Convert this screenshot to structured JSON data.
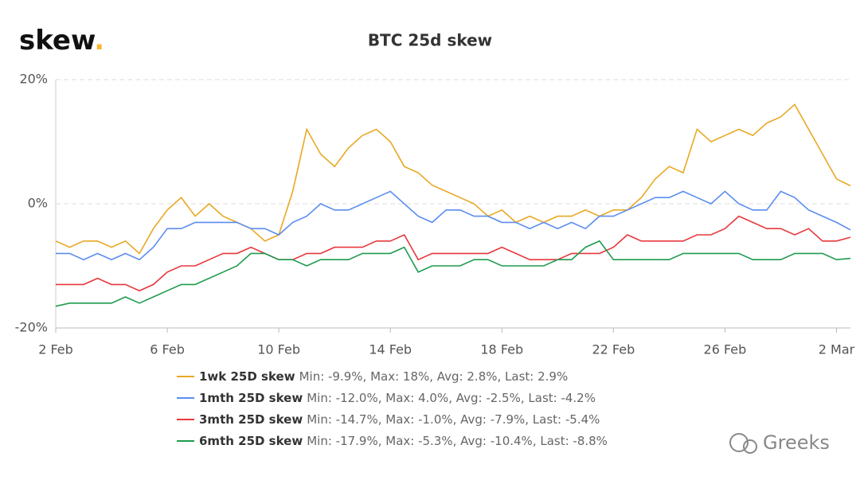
{
  "chart_data": {
    "type": "line",
    "title": "BTC 25d skew",
    "logo": "skew",
    "logo_dot": ".",
    "watermark": "Greeks",
    "xlim": [
      0,
      28.5
    ],
    "xticks": [
      {
        "value": 0,
        "label": "2 Feb"
      },
      {
        "value": 4,
        "label": "6 Feb"
      },
      {
        "value": 8,
        "label": "10 Feb"
      },
      {
        "value": 12,
        "label": "14 Feb"
      },
      {
        "value": 16,
        "label": "18 Feb"
      },
      {
        "value": 20,
        "label": "22 Feb"
      },
      {
        "value": 24,
        "label": "26 Feb"
      },
      {
        "value": 28,
        "label": "2 Mar"
      }
    ],
    "ylim": [
      -20,
      20
    ],
    "yticks": [
      {
        "value": -20,
        "label": "-20%"
      },
      {
        "value": 0,
        "label": "0%"
      },
      {
        "value": 20,
        "label": "20%"
      }
    ],
    "grid": true,
    "x": [
      0,
      0.5,
      1,
      1.5,
      2,
      2.5,
      3,
      3.5,
      4,
      4.5,
      5,
      5.5,
      6,
      6.5,
      7,
      7.5,
      8,
      8.5,
      9,
      9.5,
      10,
      10.5,
      11,
      11.5,
      12,
      12.5,
      13,
      13.5,
      14,
      14.5,
      15,
      15.5,
      16,
      16.5,
      17,
      17.5,
      18,
      18.5,
      19,
      19.5,
      20,
      20.5,
      21,
      21.5,
      22,
      22.5,
      23,
      23.5,
      24,
      24.5,
      25,
      25.5,
      26,
      26.5,
      27,
      27.5,
      28,
      28.5
    ],
    "series": [
      {
        "name": "1wk 25D skew",
        "stats": "Min: -9.9%, Max: 18%, Avg: 2.8%, Last: 2.9%",
        "color": "#e8a823",
        "values": [
          -6,
          -7,
          -6,
          -6,
          -7,
          -6,
          -8,
          -4,
          -1,
          1,
          -2,
          0,
          -2,
          -3,
          -4,
          -6,
          -5,
          2,
          12,
          8,
          6,
          9,
          11,
          12,
          10,
          6,
          5,
          3,
          2,
          1,
          0,
          -2,
          -1,
          -3,
          -2,
          -3,
          -2,
          -2,
          -1,
          -2,
          -1,
          -1,
          1,
          4,
          6,
          5,
          12,
          10,
          11,
          12,
          11,
          13,
          14,
          16,
          12,
          8,
          4,
          2.9
        ]
      },
      {
        "name": "1mth 25D skew",
        "stats": "Min: -12.0%, Max: 4.0%, Avg: -2.5%, Last: -4.2%",
        "color": "#5b8def",
        "values": [
          -8,
          -8,
          -9,
          -8,
          -9,
          -8,
          -9,
          -7,
          -4,
          -4,
          -3,
          -3,
          -3,
          -3,
          -4,
          -4,
          -5,
          -3,
          -2,
          0,
          -1,
          -1,
          0,
          1,
          2,
          0,
          -2,
          -3,
          -1,
          -1,
          -2,
          -2,
          -3,
          -3,
          -4,
          -3,
          -4,
          -3,
          -4,
          -2,
          -2,
          -1,
          0,
          1,
          1,
          2,
          1,
          0,
          2,
          0,
          -1,
          -1,
          2,
          1,
          -1,
          -2,
          -3,
          -4.2
        ]
      },
      {
        "name": "3mth 25D skew",
        "stats": "Min: -14.7%, Max: -1.0%, Avg: -7.9%, Last: -5.4%",
        "color": "#e8383d",
        "values": [
          -13,
          -13,
          -13,
          -12,
          -13,
          -13,
          -14,
          -13,
          -11,
          -10,
          -10,
          -9,
          -8,
          -8,
          -7,
          -8,
          -9,
          -9,
          -8,
          -8,
          -7,
          -7,
          -7,
          -6,
          -6,
          -5,
          -9,
          -8,
          -8,
          -8,
          -8,
          -8,
          -7,
          -8,
          -9,
          -9,
          -9,
          -8,
          -8,
          -8,
          -7,
          -5,
          -6,
          -6,
          -6,
          -6,
          -5,
          -5,
          -4,
          -2,
          -3,
          -4,
          -4,
          -5,
          -4,
          -6,
          -6,
          -5.4
        ]
      },
      {
        "name": "6mth 25D skew",
        "stats": "Min: -17.9%, Max: -5.3%, Avg: -10.4%, Last: -8.8%",
        "color": "#1e9b4e",
        "values": [
          -16.5,
          -16,
          -16,
          -16,
          -16,
          -15,
          -16,
          -15,
          -14,
          -13,
          -13,
          -12,
          -11,
          -10,
          -8,
          -8,
          -9,
          -9,
          -10,
          -9,
          -9,
          -9,
          -8,
          -8,
          -8,
          -7,
          -11,
          -10,
          -10,
          -10,
          -9,
          -9,
          -10,
          -10,
          -10,
          -10,
          -9,
          -9,
          -7,
          -6,
          -9,
          -9,
          -9,
          -9,
          -9,
          -8,
          -8,
          -8,
          -8,
          -8,
          -9,
          -9,
          -9,
          -8,
          -8,
          -8,
          -9,
          -8.8
        ]
      }
    ]
  }
}
